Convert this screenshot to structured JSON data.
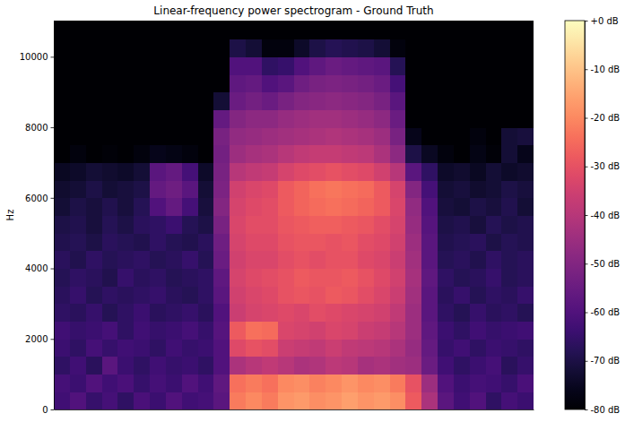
{
  "chart_data": {
    "type": "heatmap",
    "title": "Linear-frequency power spectrogram - Ground Truth",
    "y_label": "Hz",
    "tick_labels": "y",
    "color": "magma",
    "xlim": [
      0,
      30
    ],
    "ylim": [
      0,
      11025
    ],
    "yticks": [
      0,
      2000,
      4000,
      6000,
      8000,
      10000
    ],
    "x_bins": [
      0,
      1,
      2,
      3,
      4,
      5,
      6,
      7,
      8,
      9,
      10,
      11,
      12,
      13,
      14,
      15,
      16,
      17,
      18,
      19,
      20,
      21,
      22,
      23,
      24,
      25,
      26,
      27,
      28,
      29,
      30
    ],
    "y_bins": [
      0,
      500,
      1000,
      1500,
      2000,
      2500,
      3000,
      3500,
      4000,
      4500,
      5000,
      5500,
      6000,
      6500,
      7000,
      7500,
      8000,
      8500,
      9000,
      9500,
      10000,
      10500,
      11000
    ],
    "z": [
      [
        -63,
        -60,
        -65,
        -62,
        -66,
        -61,
        -64,
        -60,
        -63,
        -62,
        -58,
        -22,
        -20,
        -22,
        -18,
        -17,
        -19,
        -18,
        -16,
        -18,
        -17,
        -19,
        -28,
        -42,
        -58,
        -63,
        -60,
        -66,
        -62,
        -64
      ],
      [
        -62,
        -64,
        -60,
        -63,
        -61,
        -65,
        -62,
        -64,
        -60,
        -63,
        -57,
        -24,
        -22,
        -24,
        -20,
        -19,
        -21,
        -20,
        -18,
        -20,
        -19,
        -22,
        -30,
        -45,
        -60,
        -64,
        -62,
        -63,
        -65,
        -61
      ],
      [
        -66,
        -63,
        -67,
        -58,
        -64,
        -66,
        -63,
        -65,
        -64,
        -66,
        -60,
        -42,
        -40,
        -38,
        -40,
        -42,
        -41,
        -39,
        -40,
        -43,
        -42,
        -44,
        -45,
        -55,
        -63,
        -66,
        -64,
        -62,
        -67,
        -65
      ],
      [
        -64,
        -66,
        -62,
        -65,
        -63,
        -64,
        -66,
        -63,
        -65,
        -64,
        -60,
        -32,
        -30,
        -31,
        -36,
        -37,
        -38,
        -36,
        -38,
        -39,
        -40,
        -42,
        -46,
        -56,
        -65,
        -63,
        -66,
        -64,
        -65,
        -66
      ],
      [
        -63,
        -65,
        -64,
        -62,
        -66,
        -63,
        -65,
        -64,
        -62,
        -65,
        -59,
        -28,
        -24,
        -25,
        -33,
        -34,
        -35,
        -33,
        -34,
        -36,
        -37,
        -40,
        -45,
        -57,
        -64,
        -66,
        -63,
        -65,
        -64,
        -63
      ],
      [
        -66,
        -67,
        -65,
        -68,
        -66,
        -64,
        -67,
        -66,
        -65,
        -67,
        -60,
        -36,
        -34,
        -33,
        -32,
        -33,
        -31,
        -32,
        -33,
        -34,
        -35,
        -38,
        -45,
        -58,
        -66,
        -68,
        -65,
        -67,
        -66,
        -68
      ],
      [
        -67,
        -65,
        -68,
        -66,
        -67,
        -66,
        -65,
        -67,
        -68,
        -66,
        -58,
        -35,
        -33,
        -32,
        -30,
        -29,
        -30,
        -28,
        -29,
        -31,
        -33,
        -36,
        -44,
        -58,
        -67,
        -65,
        -68,
        -66,
        -67,
        -65
      ],
      [
        -68,
        -66,
        -67,
        -69,
        -65,
        -67,
        -66,
        -68,
        -67,
        -66,
        -57,
        -34,
        -32,
        -31,
        -30,
        -28,
        -29,
        -29,
        -28,
        -30,
        -32,
        -35,
        -43,
        -57,
        -66,
        -68,
        -67,
        -65,
        -68,
        -67
      ],
      [
        -67,
        -69,
        -66,
        -68,
        -67,
        -66,
        -68,
        -67,
        -65,
        -68,
        -55,
        -35,
        -33,
        -33,
        -31,
        -30,
        -31,
        -30,
        -30,
        -32,
        -33,
        -36,
        -44,
        -58,
        -68,
        -67,
        -69,
        -66,
        -68,
        -67
      ],
      [
        -69,
        -68,
        -70,
        -67,
        -68,
        -69,
        -66,
        -68,
        -69,
        -67,
        -54,
        -34,
        -32,
        -32,
        -30,
        -29,
        -29,
        -30,
        -29,
        -31,
        -32,
        -35,
        -45,
        -58,
        -69,
        -68,
        -67,
        -70,
        -68,
        -69
      ],
      [
        -70,
        -69,
        -71,
        -68,
        -70,
        -67,
        -66,
        -64,
        -68,
        -70,
        -52,
        -33,
        -31,
        -31,
        -29,
        -28,
        -27,
        -27,
        -28,
        -29,
        -31,
        -34,
        -46,
        -59,
        -70,
        -69,
        -71,
        -68,
        -70,
        -69
      ],
      [
        -72,
        -70,
        -71,
        -69,
        -71,
        -68,
        -60,
        -56,
        -62,
        -71,
        -50,
        -34,
        -32,
        -31,
        -28,
        -26,
        -25,
        -24,
        -25,
        -26,
        -28,
        -33,
        -47,
        -60,
        -71,
        -72,
        -70,
        -71,
        -69,
        -72
      ],
      [
        -73,
        -72,
        -70,
        -72,
        -71,
        -70,
        -56,
        -54,
        -58,
        -72,
        -51,
        -35,
        -33,
        -32,
        -28,
        -26,
        -24,
        -23,
        -24,
        -25,
        -28,
        -34,
        -50,
        -62,
        -72,
        -71,
        -73,
        -72,
        -70,
        -71
      ],
      [
        -75,
        -74,
        -72,
        -73,
        -74,
        -72,
        -58,
        -56,
        -62,
        -74,
        -52,
        -40,
        -38,
        -37,
        -34,
        -32,
        -31,
        -30,
        -31,
        -32,
        -35,
        -40,
        -58,
        -66,
        -74,
        -73,
        -75,
        -72,
        -74,
        -73
      ],
      [
        -80,
        -78,
        -80,
        -79,
        -80,
        -78,
        -76,
        -77,
        -78,
        -80,
        -53,
        -45,
        -43,
        -42,
        -40,
        -38,
        -37,
        -37,
        -38,
        -39,
        -42,
        -48,
        -70,
        -75,
        -78,
        -80,
        -77,
        -79,
        -72,
        -76
      ],
      [
        -80,
        -80,
        -80,
        -80,
        -80,
        -80,
        -80,
        -80,
        -80,
        -80,
        -52,
        -47,
        -46,
        -45,
        -44,
        -43,
        -42,
        -41,
        -42,
        -43,
        -45,
        -52,
        -76,
        -80,
        -80,
        -80,
        -78,
        -80,
        -72,
        -71
      ],
      [
        -80,
        -80,
        -80,
        -80,
        -80,
        -80,
        -80,
        -80,
        -80,
        -80,
        -56,
        -50,
        -48,
        -48,
        -46,
        -45,
        -44,
        -44,
        -45,
        -46,
        -48,
        -55,
        -80,
        -80,
        -80,
        -80,
        -80,
        -80,
        -80,
        -80
      ],
      [
        -80,
        -80,
        -80,
        -80,
        -80,
        -80,
        -80,
        -80,
        -80,
        -80,
        -72,
        -55,
        -53,
        -55,
        -52,
        -50,
        -49,
        -48,
        -49,
        -50,
        -52,
        -58,
        -80,
        -80,
        -80,
        -80,
        -80,
        -80,
        -80,
        -80
      ],
      [
        -80,
        -80,
        -80,
        -80,
        -80,
        -80,
        -80,
        -80,
        -80,
        -80,
        -80,
        -57,
        -56,
        -60,
        -58,
        -54,
        -52,
        -51,
        -52,
        -53,
        -55,
        -62,
        -80,
        -80,
        -80,
        -80,
        -80,
        -80,
        -80,
        -80
      ],
      [
        -80,
        -80,
        -80,
        -80,
        -80,
        -80,
        -80,
        -80,
        -80,
        -80,
        -80,
        -60,
        -60,
        -66,
        -65,
        -60,
        -57,
        -55,
        -56,
        -57,
        -58,
        -68,
        -80,
        -80,
        -80,
        -80,
        -80,
        -80,
        -80,
        -80
      ],
      [
        -80,
        -80,
        -80,
        -80,
        -80,
        -80,
        -80,
        -80,
        -80,
        -80,
        -80,
        -70,
        -72,
        -78,
        -78,
        -74,
        -70,
        -68,
        -69,
        -70,
        -72,
        -78,
        -80,
        -80,
        -80,
        -80,
        -80,
        -80,
        -80,
        -80
      ],
      [
        -80,
        -80,
        -80,
        -80,
        -80,
        -80,
        -80,
        -80,
        -80,
        -80,
        -80,
        -80,
        -80,
        -80,
        -80,
        -80,
        -80,
        -80,
        -80,
        -80,
        -80,
        -80,
        -80,
        -80,
        -80,
        -80,
        -80,
        -80,
        -80,
        -80
      ]
    ],
    "colorbar": {
      "range": [
        -80,
        0
      ],
      "ticks": [
        {
          "value": 0,
          "label": "+0 dB"
        },
        {
          "value": -10,
          "label": "-10 dB"
        },
        {
          "value": -20,
          "label": "-20 dB"
        },
        {
          "value": -30,
          "label": "-30 dB"
        },
        {
          "value": -40,
          "label": "-40 dB"
        },
        {
          "value": -50,
          "label": "-50 dB"
        },
        {
          "value": -60,
          "label": "-60 dB"
        },
        {
          "value": -70,
          "label": "-70 dB"
        },
        {
          "value": -80,
          "label": "-80 dB"
        }
      ]
    }
  }
}
